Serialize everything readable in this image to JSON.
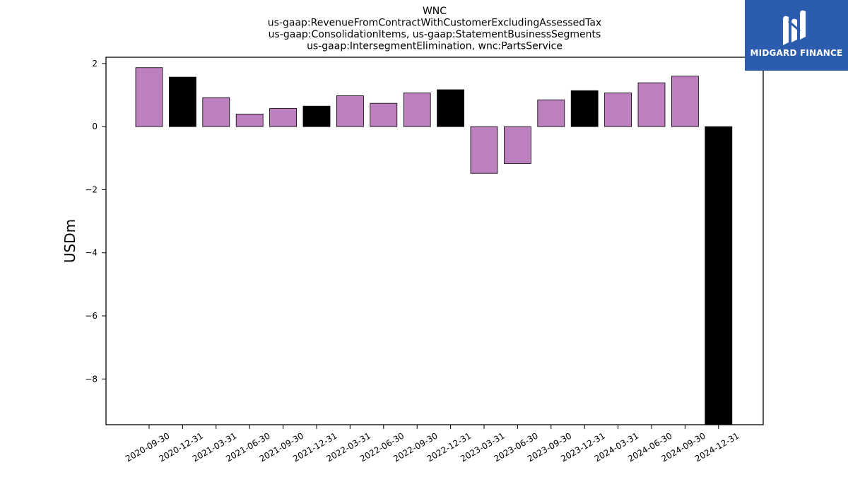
{
  "chart_data": {
    "type": "bar",
    "title_lines": [
      "WNC",
      "us-gaap:RevenueFromContractWithCustomerExcludingAssessedTax",
      "us-gaap:ConsolidationItems, us-gaap:StatementBusinessSegments",
      "us-gaap:IntersegmentElimination, wnc:PartsService"
    ],
    "ylabel": "USDm",
    "xlabel": "",
    "ylim": [
      -9.45,
      2.2
    ],
    "yticks": [
      2,
      0,
      -2,
      -4,
      -6,
      -8
    ],
    "categories": [
      "2020-09-30",
      "2020-12-31",
      "2021-03-31",
      "2021-06-30",
      "2021-09-30",
      "2021-12-31",
      "2022-03-31",
      "2022-06-30",
      "2022-09-30",
      "2022-12-31",
      "2023-03-31",
      "2023-06-30",
      "2023-09-30",
      "2023-12-31",
      "2024-03-31",
      "2024-06-30",
      "2024-09-30",
      "2024-12-31"
    ],
    "values": [
      1.87,
      1.57,
      0.92,
      0.4,
      0.58,
      0.65,
      0.98,
      0.74,
      1.07,
      1.17,
      -1.48,
      -1.17,
      0.85,
      1.14,
      1.07,
      1.39,
      1.6,
      -9.45
    ],
    "bar_colors": [
      "#bb80bd",
      "#000000",
      "#bb80bd",
      "#bb80bd",
      "#bb80bd",
      "#000000",
      "#bb80bd",
      "#bb80bd",
      "#bb80bd",
      "#000000",
      "#bb80bd",
      "#bb80bd",
      "#bb80bd",
      "#000000",
      "#bb80bd",
      "#bb80bd",
      "#bb80bd",
      "#000000"
    ],
    "grid": false,
    "legend": "none"
  },
  "logo": {
    "text": "MIDGARD FINANCE",
    "background": "#2b5cad",
    "icon": "midgard-finance-logo-icon"
  }
}
